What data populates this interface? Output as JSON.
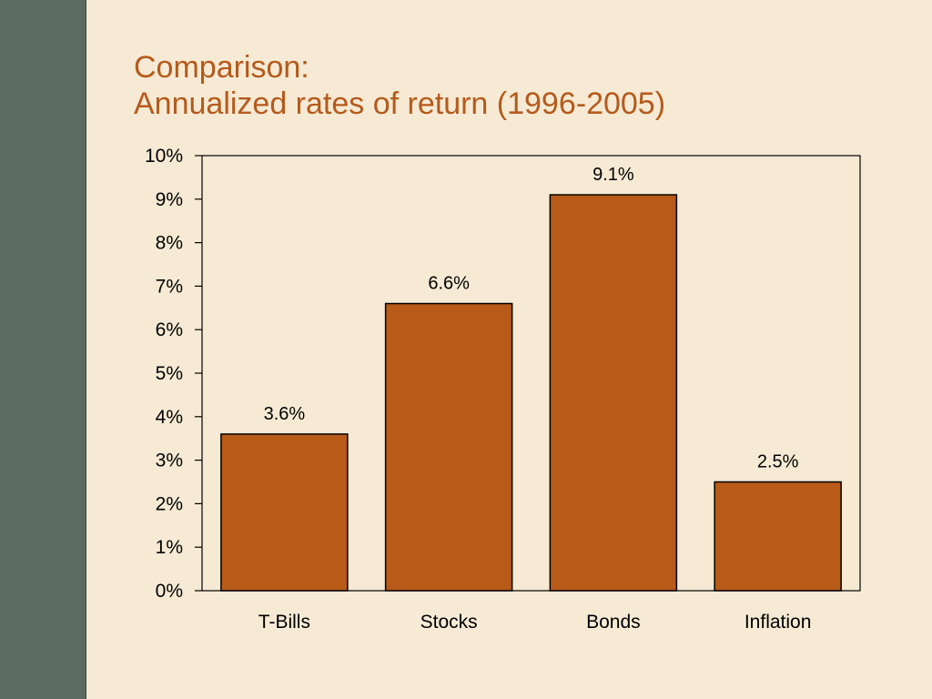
{
  "slide": {
    "title_line1": "Comparison:",
    "title_line2": "Annualized rates of return (1996-2005)"
  },
  "colors": {
    "background": "#F6EAD4",
    "sidebar": "#5C6B63",
    "title": "#B55A1C",
    "bar_fill": "#B85A18",
    "bar_stroke": "#000000"
  },
  "chart_data": {
    "type": "bar",
    "title": "",
    "xlabel": "",
    "ylabel": "",
    "categories": [
      "T-Bills",
      "Stocks",
      "Bonds",
      "Inflation"
    ],
    "values": [
      3.6,
      6.6,
      9.1,
      2.5
    ],
    "value_labels": [
      "3.6%",
      "6.6%",
      "9.1%",
      "2.5%"
    ],
    "ylim": [
      0,
      10
    ],
    "y_ticks": [
      0,
      1,
      2,
      3,
      4,
      5,
      6,
      7,
      8,
      9,
      10
    ],
    "y_tick_labels": [
      "0%",
      "1%",
      "2%",
      "3%",
      "4%",
      "5%",
      "6%",
      "7%",
      "8%",
      "9%",
      "10%"
    ],
    "grid": false,
    "legend": "none"
  }
}
